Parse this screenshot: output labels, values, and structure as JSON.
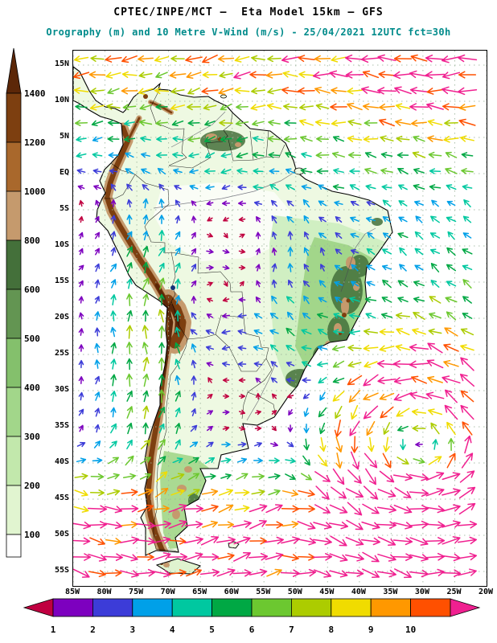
{
  "header": {
    "line1": "CPTEC/INPE/MCT —  Eta Model 15km — GFS",
    "line2": "Orography (m) and 10 Metre V-Wind (m/s) - 25/04/2021 12UTC fct=30h",
    "line2_color": "#008b8b"
  },
  "orography_scale": {
    "tick_labels_top_to_bottom": [
      "1400",
      "1200",
      "1000",
      "800",
      "600",
      "500",
      "400",
      "300",
      "200",
      "100"
    ],
    "colors_top_to_bottom": [
      "#5c2708",
      "#7d3f10",
      "#a9682c",
      "#c59a6d",
      "#44703a",
      "#639552",
      "#84c06c",
      "#a2d68a",
      "#c2e8ac",
      "#e1f5d0",
      "#ffffff"
    ]
  },
  "wind_scale": {
    "tick_labels": [
      "1",
      "2",
      "3",
      "4",
      "5",
      "6",
      "7",
      "8",
      "9",
      "10"
    ],
    "colors_left_to_right": [
      "#c00040",
      "#7d00bf",
      "#3c3cd8",
      "#00a0e8",
      "#00c8a0",
      "#00a844",
      "#6cc830",
      "#accc00",
      "#f0dc00",
      "#ff9800",
      "#ff5000",
      "#f02090"
    ]
  },
  "map": {
    "lat_labels_top_to_bottom": [
      "15N",
      "10N",
      "5N",
      "EQ",
      "5S",
      "10S",
      "15S",
      "20S",
      "25S",
      "30S",
      "35S",
      "40S",
      "45S",
      "50S",
      "55S"
    ],
    "lon_labels_left_to_right": [
      "85W",
      "80W",
      "75W",
      "70W",
      "65W",
      "60W",
      "55W",
      "50W",
      "45W",
      "40W",
      "35W",
      "30W",
      "25W",
      "20W"
    ]
  }
}
